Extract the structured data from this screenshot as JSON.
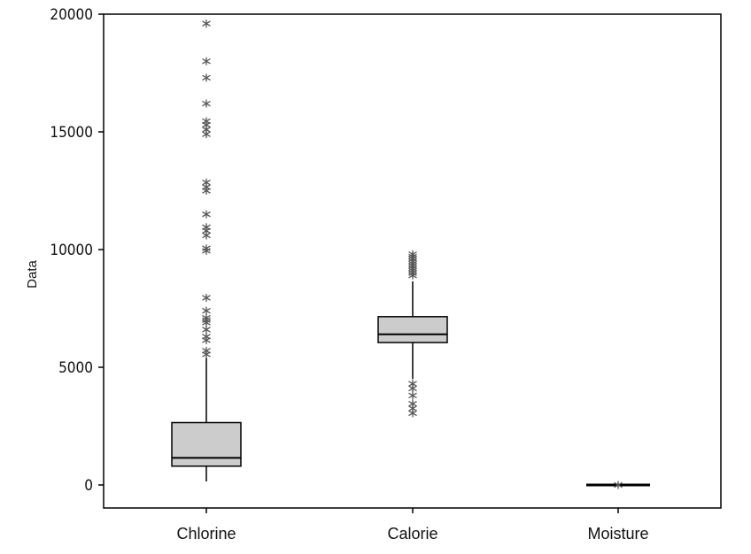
{
  "chart_data": {
    "type": "boxplot",
    "title": "",
    "xlabel": "",
    "ylabel": "Data",
    "ylim": [
      -1000,
      20000
    ],
    "yticks": [
      0,
      5000,
      10000,
      15000,
      20000
    ],
    "categories": [
      "Chlorine",
      "Calorie",
      "Moisture"
    ],
    "grid": false,
    "legend": "none",
    "colors": {
      "box_fill": "#cccccc",
      "box_stroke": "#000000",
      "outlier": "#555555"
    },
    "boxes": [
      {
        "name": "Chlorine",
        "whisker_low": 150,
        "q1": 800,
        "median": 1150,
        "q3": 2650,
        "whisker_high": 5400,
        "outliers": [
          5550,
          5700,
          6150,
          6300,
          6600,
          6900,
          7000,
          7100,
          7400,
          7950,
          9950,
          10050,
          10600,
          10800,
          10950,
          11500,
          12500,
          12650,
          12850,
          14900,
          15100,
          15300,
          15450,
          16200,
          17300,
          18000,
          19600
        ]
      },
      {
        "name": "Calorie",
        "whisker_low": 4500,
        "q1": 6050,
        "median": 6400,
        "q3": 7150,
        "whisker_high": 8650,
        "outliers": [
          3050,
          3250,
          3450,
          3800,
          4100,
          4300,
          8900,
          9000,
          9100,
          9200,
          9300,
          9400,
          9500,
          9600,
          9700,
          9800
        ]
      },
      {
        "name": "Moisture",
        "whisker_low": 0,
        "q1": 0,
        "median": 0,
        "q3": 0,
        "whisker_high": 0,
        "outliers": [
          0
        ]
      }
    ]
  }
}
